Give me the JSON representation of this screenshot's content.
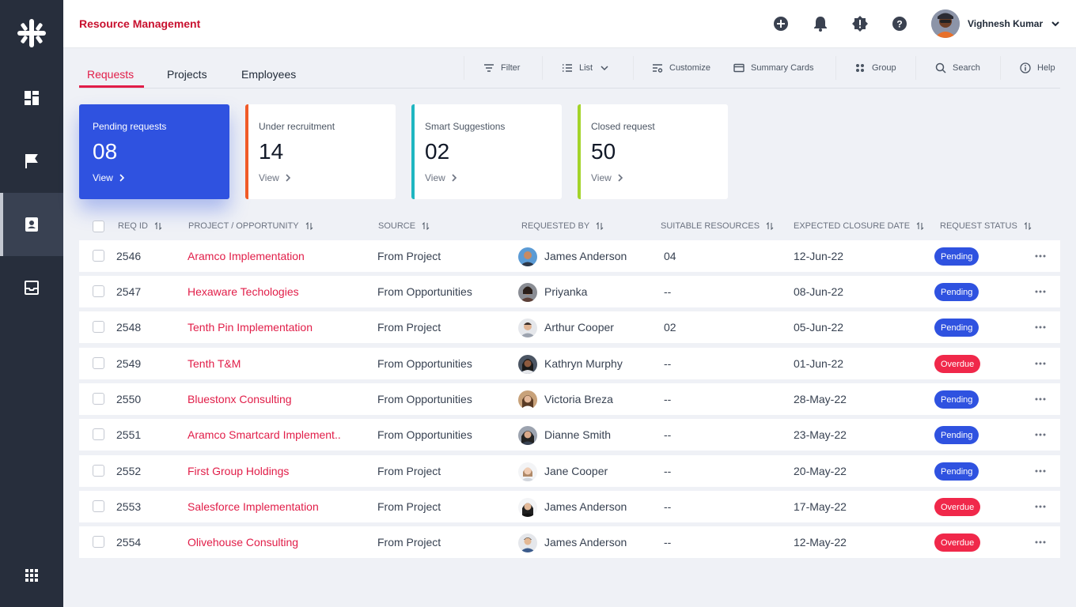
{
  "header": {
    "title": "Resource Management",
    "user_name": "Vighnesh Kumar"
  },
  "tabs": [
    {
      "label": "Requests",
      "active": true
    },
    {
      "label": "Projects",
      "active": false
    },
    {
      "label": "Employees",
      "active": false
    }
  ],
  "toolbar": {
    "filter": "Filter",
    "list": "List",
    "customize": "Customize",
    "summary_cards": "Summary Cards",
    "group": "Group",
    "search": "Search",
    "help": "Help"
  },
  "cards": [
    {
      "title": "Pending requests",
      "value": "08",
      "view": "View",
      "accent": "#2f52e0"
    },
    {
      "title": "Under recruitment",
      "value": "14",
      "view": "View",
      "accent": "#f05a28"
    },
    {
      "title": "Smart Suggestions",
      "value": "02",
      "view": "View",
      "accent": "#1fb6c1"
    },
    {
      "title": "Closed request",
      "value": "50",
      "view": "View",
      "accent": "#a3d42a"
    }
  ],
  "table": {
    "columns": [
      "REQ ID",
      "PROJECT / OPPORTUNITY",
      "SOURCE",
      "REQUESTED BY",
      "SUITABLE RESOURCES",
      "EXPECTED CLOSURE DATE",
      "REQUEST STATUS"
    ],
    "rows": [
      {
        "id": "2546",
        "project": "Aramco Implementation",
        "source": "From Project",
        "requested_by": "James Anderson",
        "resources": "04",
        "date": "12-Jun-22",
        "status": "Pending"
      },
      {
        "id": "2547",
        "project": "Hexaware Techologies",
        "source": "From Opportunities",
        "requested_by": "Priyanka",
        "resources": "--",
        "date": "08-Jun-22",
        "status": "Pending"
      },
      {
        "id": "2548",
        "project": "Tenth Pin Implementation",
        "source": "From Project",
        "requested_by": "Arthur Cooper",
        "resources": "02",
        "date": "05-Jun-22",
        "status": "Pending"
      },
      {
        "id": "2549",
        "project": "Tenth T&M",
        "source": "From Opportunities",
        "requested_by": "Kathryn Murphy",
        "resources": "--",
        "date": "01-Jun-22",
        "status": "Overdue"
      },
      {
        "id": "2550",
        "project": "Bluestonx Consulting",
        "source": "From Opportunities",
        "requested_by": "Victoria Breza",
        "resources": "--",
        "date": "28-May-22",
        "status": "Pending"
      },
      {
        "id": "2551",
        "project": "Aramco Smartcard Implement..",
        "source": "From Opportunities",
        "requested_by": "Dianne Smith",
        "resources": "--",
        "date": "23-May-22",
        "status": "Pending"
      },
      {
        "id": "2552",
        "project": "First Group Holdings",
        "source": "From Project",
        "requested_by": "Jane Cooper",
        "resources": "--",
        "date": "20-May-22",
        "status": "Pending"
      },
      {
        "id": "2553",
        "project": "Salesforce Implementation",
        "source": "From Project",
        "requested_by": "James Anderson",
        "resources": "--",
        "date": "17-May-22",
        "status": "Overdue"
      },
      {
        "id": "2554",
        "project": "Olivehouse Consulting",
        "source": "From Project",
        "requested_by": "James Anderson",
        "resources": "--",
        "date": "12-May-22",
        "status": "Overdue"
      }
    ]
  },
  "colors": {
    "pending": "#2f52e0",
    "overdue": "#f0284a",
    "link": "#e11d48",
    "sidebar": "#272e3c"
  }
}
